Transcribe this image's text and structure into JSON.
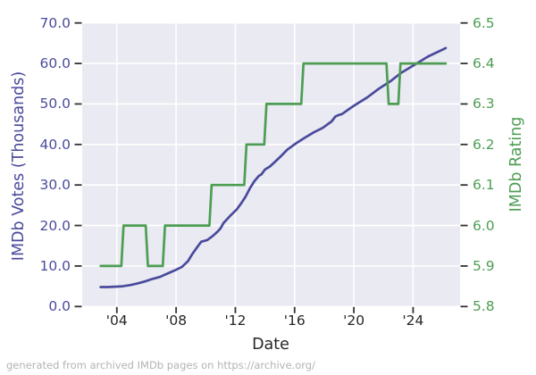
{
  "footer": {
    "text": "generated from archived IMDb pages on https://archive.org/",
    "color": "#b3b3b3"
  },
  "chart_data": {
    "type": "line",
    "title": "",
    "xlabel": "Date",
    "grid": true,
    "legend": "none",
    "plot_background": "#eaeaf2",
    "grid_color": "#ffffff",
    "tick_color": "#333333",
    "x_axis": {
      "label": "Date",
      "color": "#262626",
      "range": [
        2001.66,
        2027.17
      ],
      "ticks": [
        2004,
        2008,
        2012,
        2016,
        2020,
        2024
      ],
      "tick_labels": [
        "'04",
        "'08",
        "'12",
        "'16",
        "'20",
        "'24"
      ]
    },
    "y_left": {
      "label": "IMDb Votes (Thousands)",
      "color": "#4a4a9d",
      "range": [
        0,
        70
      ],
      "ticks": [
        0,
        10,
        20,
        30,
        40,
        50,
        60,
        70
      ],
      "tick_labels": [
        "0.0",
        "10.0",
        "20.0",
        "30.0",
        "40.0",
        "50.0",
        "60.0",
        "70.0"
      ]
    },
    "y_right": {
      "label": "IMDb Rating",
      "color": "#4d9e53",
      "range": [
        5.8,
        6.5
      ],
      "ticks": [
        5.8,
        5.9,
        6.0,
        6.1,
        6.2,
        6.3,
        6.4,
        6.5
      ],
      "tick_labels": [
        "5.8",
        "5.9",
        "6.0",
        "6.1",
        "6.2",
        "6.3",
        "6.4",
        "6.5"
      ]
    },
    "series": [
      {
        "id": "votes",
        "name": "IMDb Votes (Thousands)",
        "axis": "left",
        "color": "#4a4a9d",
        "x": [
          2002.9,
          2003.4,
          2003.9,
          2004.4,
          2004.9,
          2005.4,
          2005.9,
          2006.4,
          2006.9,
          2007.4,
          2007.9,
          2008.4,
          2008.8,
          2009.1,
          2009.45,
          2009.7,
          2010.1,
          2010.5,
          2010.8,
          2011.0,
          2011.2,
          2011.65,
          2012.1,
          2012.4,
          2012.7,
          2013.0,
          2013.3,
          2013.6,
          2013.75,
          2014.0,
          2014.35,
          2014.7,
          2015.1,
          2015.5,
          2016.1,
          2016.7,
          2017.3,
          2017.9,
          2018.5,
          2018.75,
          2019.0,
          2019.2,
          2019.7,
          2020.1,
          2020.9,
          2021.7,
          2022.5,
          2023.2,
          2024.2,
          2025.0,
          2026.1,
          2026.2
        ],
        "y": [
          4.8,
          4.8,
          4.9,
          5.0,
          5.3,
          5.7,
          6.2,
          6.8,
          7.3,
          8.1,
          8.9,
          9.8,
          11.2,
          13.0,
          14.8,
          16.0,
          16.4,
          17.5,
          18.5,
          19.3,
          20.6,
          22.4,
          24.0,
          25.5,
          27.2,
          29.3,
          31.0,
          32.3,
          32.6,
          33.8,
          34.6,
          35.8,
          37.2,
          38.7,
          40.3,
          41.7,
          43.0,
          44.1,
          45.7,
          46.9,
          47.3,
          47.5,
          48.8,
          49.8,
          51.6,
          53.8,
          55.7,
          57.7,
          59.9,
          61.7,
          63.6,
          63.8
        ]
      },
      {
        "id": "rating",
        "name": "IMDb Rating",
        "axis": "right",
        "color": "#4d9e53",
        "x": [
          2002.9,
          2004.3,
          2004.45,
          2005.95,
          2006.1,
          2007.1,
          2007.25,
          2010.25,
          2010.4,
          2012.6,
          2012.75,
          2013.95,
          2014.1,
          2016.45,
          2016.6,
          2022.2,
          2022.35,
          2023.0,
          2023.15,
          2026.2
        ],
        "y": [
          5.9,
          5.9,
          6.0,
          6.0,
          5.9,
          5.9,
          6.0,
          6.0,
          6.1,
          6.1,
          6.2,
          6.2,
          6.3,
          6.3,
          6.4,
          6.4,
          6.3,
          6.3,
          6.4,
          6.4
        ]
      }
    ]
  }
}
